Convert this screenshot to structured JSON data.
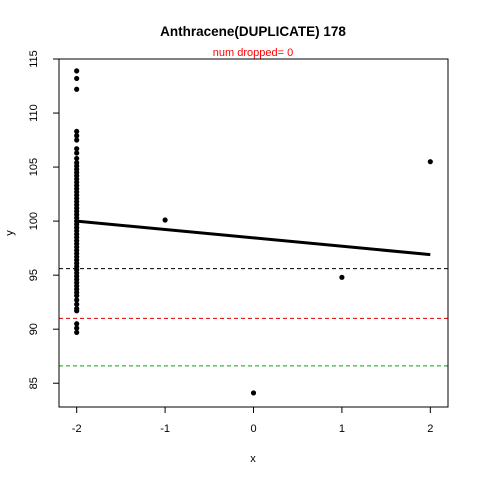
{
  "chart_data": {
    "type": "scatter",
    "title": "Anthracene(DUPLICATE) 178",
    "subtitle": "num dropped= 0",
    "subtitle_color": "#ff0000",
    "xlabel": "x",
    "ylabel": "y",
    "xlim": [
      -2.2,
      2.2
    ],
    "ylim": [
      82.8,
      115.0
    ],
    "xticks": [
      -2,
      -1,
      0,
      1,
      2
    ],
    "yticks": [
      85,
      90,
      95,
      100,
      105,
      110,
      115
    ],
    "points": [
      {
        "x": -2,
        "y": 113.9
      },
      {
        "x": -2,
        "y": 113.2
      },
      {
        "x": -2,
        "y": 112.2
      },
      {
        "x": -2,
        "y": 108.3
      },
      {
        "x": -2,
        "y": 107.9
      },
      {
        "x": -2,
        "y": 107.5
      },
      {
        "x": -2,
        "y": 106.7
      },
      {
        "x": -2,
        "y": 106.3
      },
      {
        "x": -2,
        "y": 105.8
      },
      {
        "x": -2,
        "y": 105.4
      },
      {
        "x": -2,
        "y": 105.1
      },
      {
        "x": -2,
        "y": 104.8
      },
      {
        "x": -2,
        "y": 104.5
      },
      {
        "x": -2,
        "y": 104.2
      },
      {
        "x": -2,
        "y": 103.9
      },
      {
        "x": -2,
        "y": 103.6
      },
      {
        "x": -2,
        "y": 103.3
      },
      {
        "x": -2,
        "y": 103.0
      },
      {
        "x": -2,
        "y": 102.7
      },
      {
        "x": -2,
        "y": 102.4
      },
      {
        "x": -2,
        "y": 102.1
      },
      {
        "x": -2,
        "y": 101.8
      },
      {
        "x": -2,
        "y": 101.5
      },
      {
        "x": -2,
        "y": 101.2
      },
      {
        "x": -2,
        "y": 100.9
      },
      {
        "x": -2,
        "y": 100.6
      },
      {
        "x": -2,
        "y": 100.3
      },
      {
        "x": -2,
        "y": 100.0
      },
      {
        "x": -2,
        "y": 99.7
      },
      {
        "x": -2,
        "y": 99.4
      },
      {
        "x": -2,
        "y": 99.1
      },
      {
        "x": -2,
        "y": 98.8
      },
      {
        "x": -2,
        "y": 98.5
      },
      {
        "x": -2,
        "y": 98.2
      },
      {
        "x": -2,
        "y": 97.9
      },
      {
        "x": -2,
        "y": 97.6
      },
      {
        "x": -2,
        "y": 97.3
      },
      {
        "x": -2,
        "y": 97.0
      },
      {
        "x": -2,
        "y": 96.7
      },
      {
        "x": -2,
        "y": 96.4
      },
      {
        "x": -2,
        "y": 96.1
      },
      {
        "x": -2,
        "y": 95.8
      },
      {
        "x": -2,
        "y": 95.5
      },
      {
        "x": -2,
        "y": 95.2
      },
      {
        "x": -2,
        "y": 94.9
      },
      {
        "x": -2,
        "y": 94.6
      },
      {
        "x": -2,
        "y": 94.3
      },
      {
        "x": -2,
        "y": 94.0
      },
      {
        "x": -2,
        "y": 93.7
      },
      {
        "x": -2,
        "y": 93.4
      },
      {
        "x": -2,
        "y": 93.1
      },
      {
        "x": -2,
        "y": 92.7
      },
      {
        "x": -2,
        "y": 92.3
      },
      {
        "x": -2,
        "y": 91.9
      },
      {
        "x": -2,
        "y": 91.7
      },
      {
        "x": -2,
        "y": 90.5
      },
      {
        "x": -2,
        "y": 90.1
      },
      {
        "x": -2,
        "y": 89.7
      },
      {
        "x": -1,
        "y": 100.1
      },
      {
        "x": 0,
        "y": 84.1
      },
      {
        "x": 1,
        "y": 94.8
      },
      {
        "x": 2,
        "y": 105.5
      }
    ],
    "regression_line": {
      "x": [
        -2,
        2
      ],
      "y": [
        100.0,
        96.9
      ],
      "color": "#000000"
    },
    "reference_lines": [
      {
        "y": 95.6,
        "color": "#000000",
        "style": "dashed"
      },
      {
        "y": 91.0,
        "color": "#dd0000",
        "style": "dashed"
      },
      {
        "y": 86.6,
        "color": "#00aa00",
        "style": "dashed"
      }
    ]
  }
}
